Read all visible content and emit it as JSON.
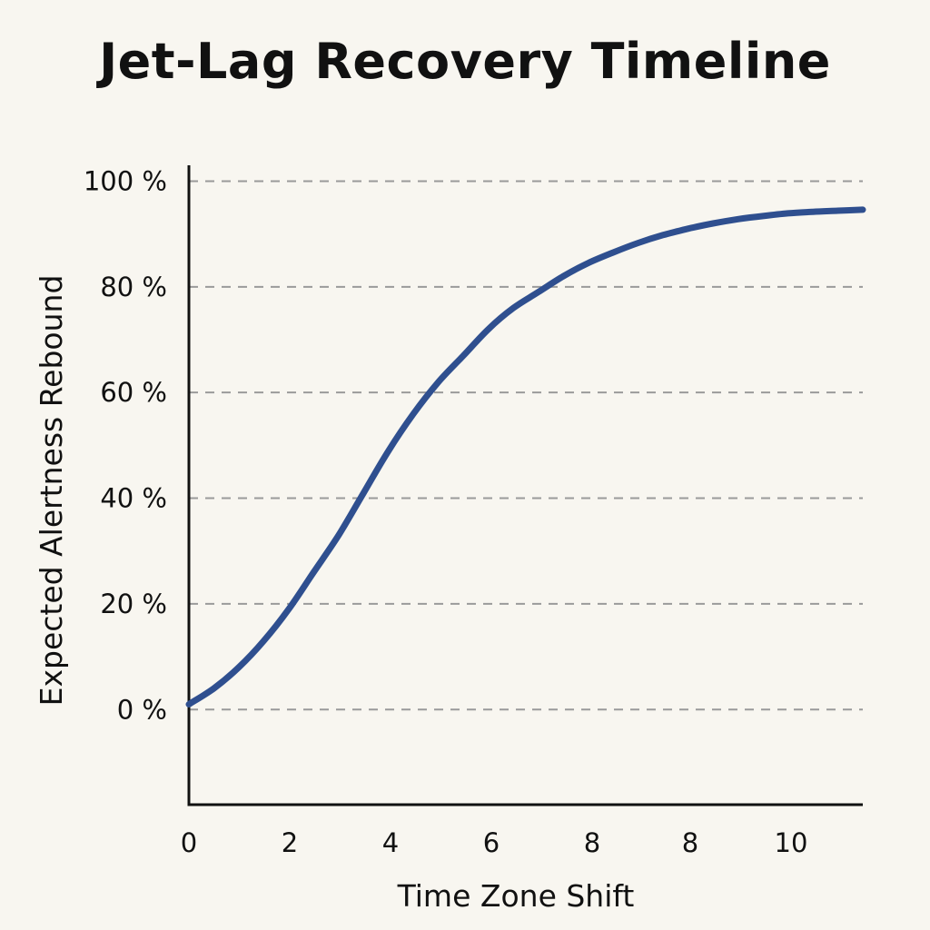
{
  "chart_data": {
    "type": "line",
    "title": "Jet-Lag Recovery Timeline",
    "xlabel": "Time Zone Shift",
    "ylabel": "Expected Alertness Rebound",
    "x_tick_labels": [
      "0",
      "2",
      "4",
      "6",
      "8",
      "8",
      "10"
    ],
    "y_tick_labels": [
      "0 %",
      "20 %",
      "40 %",
      "60 %",
      "80 %",
      "100 %"
    ],
    "y_ticks": [
      0,
      20,
      40,
      60,
      80,
      100
    ],
    "xlim": [
      0,
      13.5
    ],
    "ylim": [
      -18,
      103
    ],
    "grid": true,
    "series": [
      {
        "color": "#2f4f8f",
        "x": [
          0,
          0.5,
          1,
          1.5,
          2,
          2.5,
          3,
          3.5,
          4,
          4.5,
          5,
          5.5,
          6,
          6.5,
          7,
          7.5,
          8,
          8.5,
          9,
          9.5,
          10,
          10.5,
          11,
          11.5,
          12,
          12.5,
          13,
          13.5
        ],
        "y": [
          1,
          4,
          8,
          13,
          19,
          26,
          33,
          41,
          49,
          56,
          62,
          67,
          72,
          76,
          79,
          82,
          84.5,
          86.5,
          88.3,
          89.8,
          91,
          92,
          92.8,
          93.4,
          93.9,
          94.2,
          94.4,
          94.6
        ]
      }
    ],
    "colors": {
      "background": "#f8f6f0",
      "axis": "#111111",
      "grid": "#9a9a9a",
      "line": "#2f4f8f"
    }
  }
}
